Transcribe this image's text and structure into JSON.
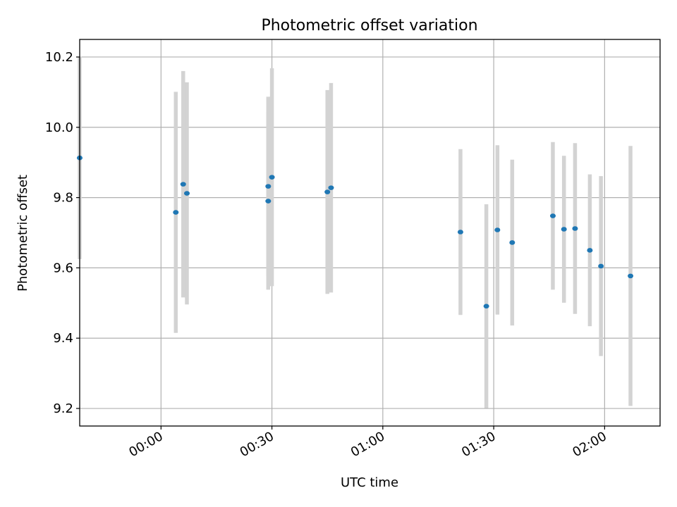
{
  "chart_data": {
    "type": "scatter",
    "title": "Photometric offset variation",
    "xlabel": "UTC time",
    "ylabel": "Photometric offset",
    "x_range": [
      "23:38",
      "02:15"
    ],
    "ylim": [
      9.15,
      10.25
    ],
    "x_ticks": [
      "00:00",
      "00:30",
      "01:00",
      "01:30",
      "02:00"
    ],
    "y_ticks": [
      9.2,
      9.4,
      9.6,
      9.8,
      10.0,
      10.2
    ],
    "y_tick_labels": [
      "9.2",
      "9.4",
      "9.6",
      "9.8",
      "10.0",
      "10.2"
    ],
    "grid": true,
    "point_color": "#1f77b4",
    "errorbar_color": "#d3d3d3",
    "points": [
      {
        "time": "23:38",
        "y": 9.913,
        "yerr": 0.288
      },
      {
        "time": "00:04",
        "y": 9.758,
        "yerr": 0.343
      },
      {
        "time": "00:06",
        "y": 9.838,
        "yerr": 0.322
      },
      {
        "time": "00:07",
        "y": 9.812,
        "yerr": 0.316
      },
      {
        "time": "00:29",
        "y": 9.832,
        "yerr": 0.255
      },
      {
        "time": "00:29",
        "y": 9.79,
        "yerr": 0.252
      },
      {
        "time": "00:30",
        "y": 9.858,
        "yerr": 0.31
      },
      {
        "time": "00:45",
        "y": 9.816,
        "yerr": 0.29
      },
      {
        "time": "00:46",
        "y": 9.828,
        "yerr": 0.298
      },
      {
        "time": "01:21",
        "y": 9.702,
        "yerr": 0.236
      },
      {
        "time": "01:28",
        "y": 9.491,
        "yerr": 0.29
      },
      {
        "time": "01:31",
        "y": 9.708,
        "yerr": 0.241
      },
      {
        "time": "01:35",
        "y": 9.672,
        "yerr": 0.236
      },
      {
        "time": "01:46",
        "y": 9.748,
        "yerr": 0.21
      },
      {
        "time": "01:49",
        "y": 9.71,
        "yerr": 0.209
      },
      {
        "time": "01:52",
        "y": 9.712,
        "yerr": 0.243
      },
      {
        "time": "01:56",
        "y": 9.65,
        "yerr": 0.216
      },
      {
        "time": "01:59",
        "y": 9.605,
        "yerr": 0.256
      },
      {
        "time": "02:07",
        "y": 9.577,
        "yerr": 0.37
      }
    ]
  }
}
